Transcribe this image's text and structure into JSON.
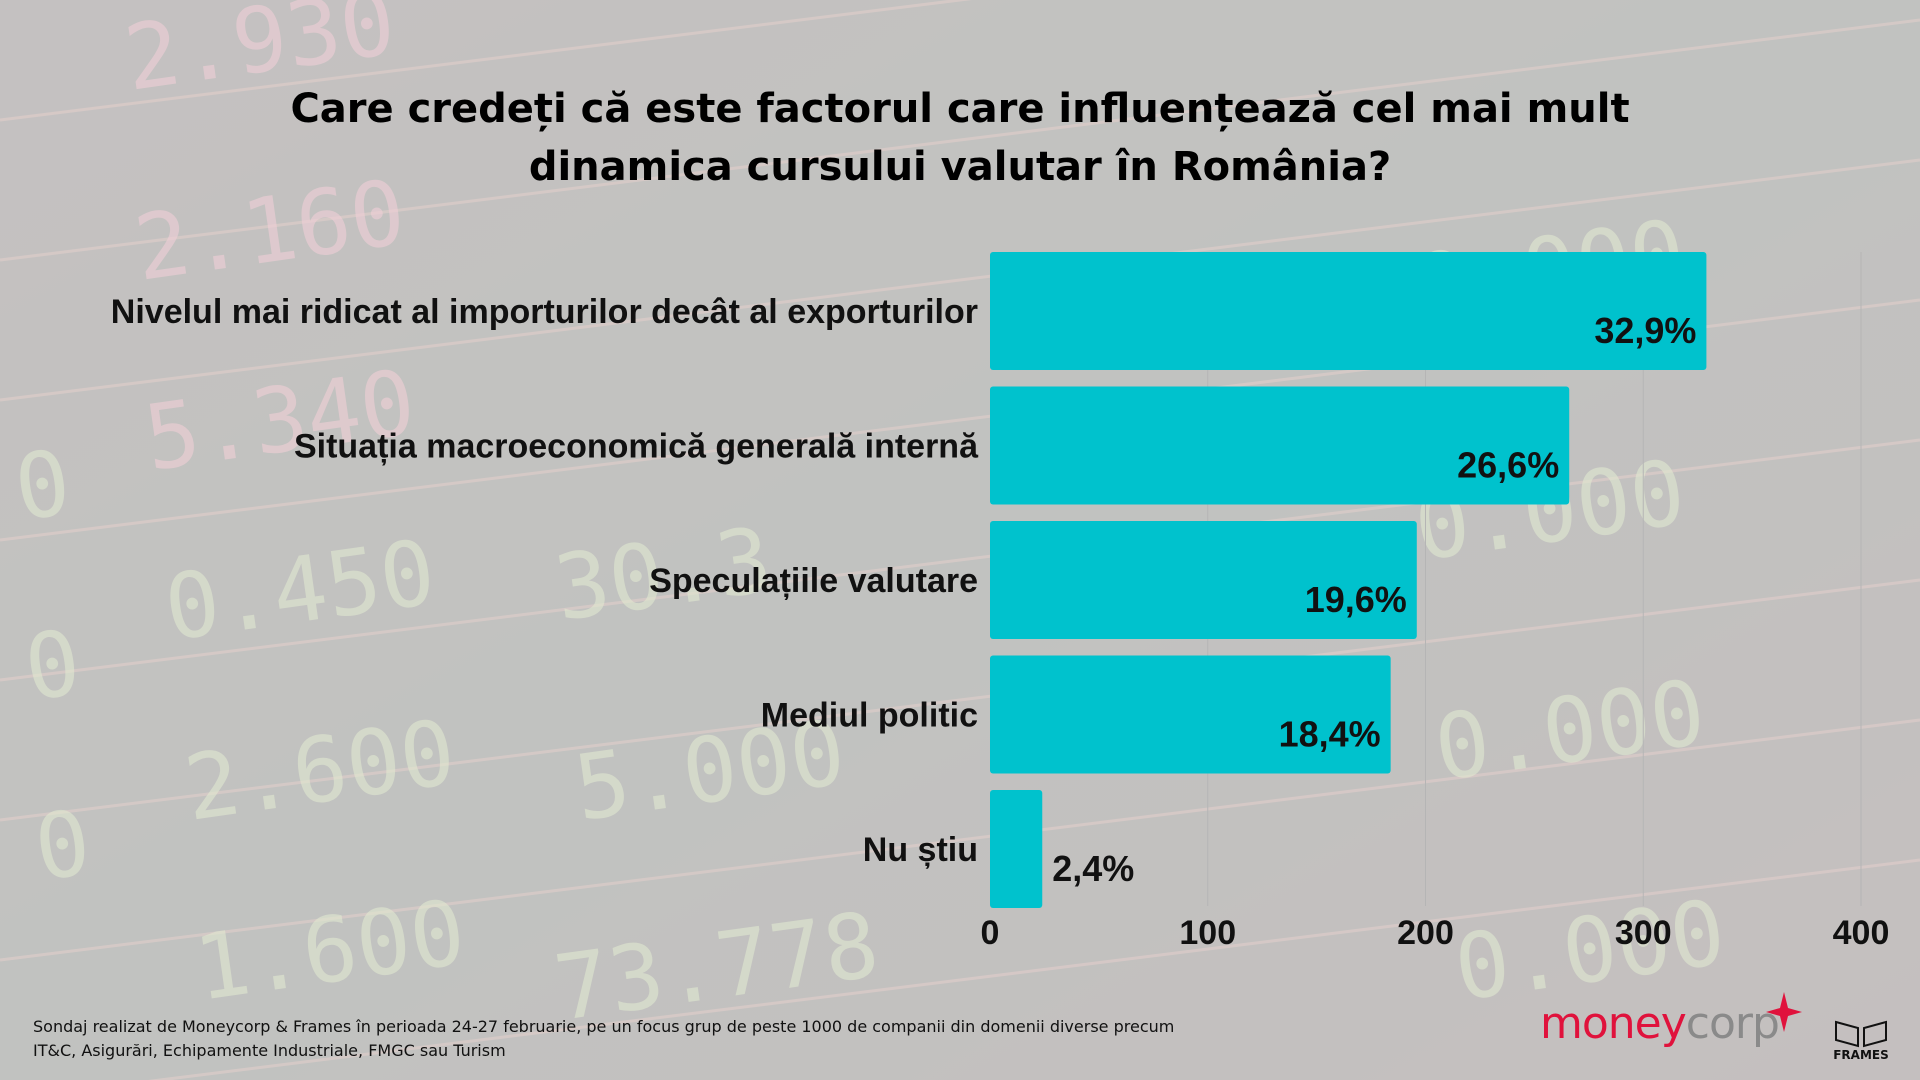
{
  "title": {
    "line1": "Care credeți că este factorul care influențează cel mai mult",
    "line2": "dinamica cursului valutar în România?"
  },
  "chart_data": {
    "type": "bar",
    "orientation": "horizontal",
    "categories": [
      "Nivelul mai ridicat al importurilor decât al exporturilor",
      "Situația macroeconomică generală internă",
      "Speculațiile valutare",
      "Mediul politic",
      "Nu știu"
    ],
    "values": [
      329,
      266,
      196,
      184,
      24
    ],
    "data_labels": [
      "32,9%",
      "26,6%",
      "19,6%",
      "18,4%",
      "2,4%"
    ],
    "xlim": [
      0,
      400
    ],
    "x_ticks": [
      0,
      100,
      200,
      300,
      400
    ],
    "x_tick_labels": [
      "0",
      "100",
      "200",
      "300",
      "400"
    ],
    "bar_color": "#00c2cd",
    "grid": true
  },
  "footnote": {
    "line1": "Sondaj realizat de Moneycorp & Frames  în perioada 24-27 februarie, pe un focus grup de peste 1000 de companii  din domenii diverse precum",
    "line2": "IT&C, Asigurări, Echipamente Industriale, FMGC sau Turism"
  },
  "logos": {
    "moneycorp_part1": "money",
    "moneycorp_part2": "corp",
    "frames": "FRAMES",
    "moneycorp_red": "#e0123c",
    "moneycorp_grey": "#8a8a8a"
  }
}
